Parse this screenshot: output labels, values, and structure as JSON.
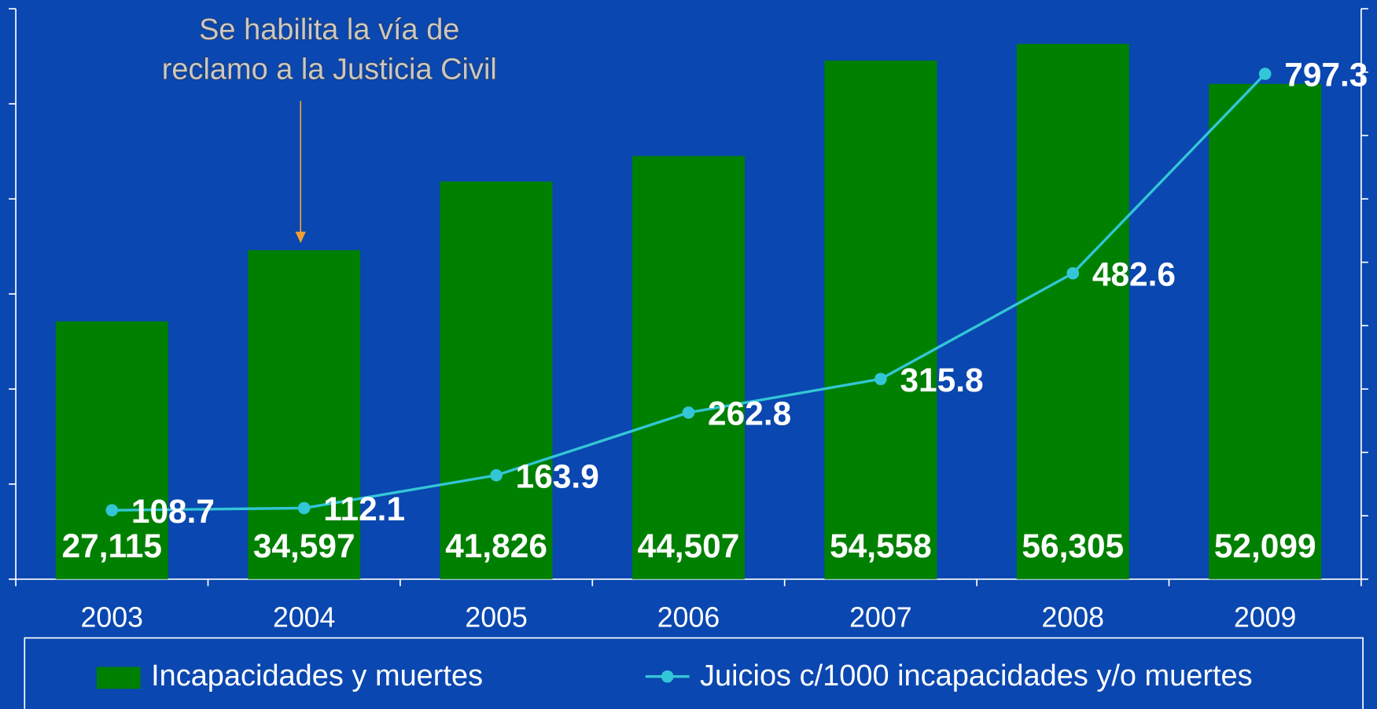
{
  "chart_data": {
    "type": "bar_line",
    "annotation": [
      "Se habilita la vía de",
      "reclamo a la Justicia Civil"
    ],
    "annotation_category": 1,
    "categories": [
      "2003",
      "2004",
      "2005",
      "2006",
      "2007",
      "2008",
      "2009"
    ],
    "series": [
      {
        "name": "Incapacidades y muertes",
        "type": "bar",
        "color": "#008000",
        "values": [
          27115,
          34597,
          41826,
          44507,
          54558,
          56305,
          52099
        ],
        "value_labels": [
          "27,115",
          "34,597",
          "41,826",
          "44,507",
          "54,558",
          "56,305",
          "52,099"
        ]
      },
      {
        "name": "Juicios c/1000 incapacidades y/o muertes",
        "type": "line",
        "axis": "y2",
        "color": "#33c6d6",
        "values": [
          108.7,
          112.1,
          163.9,
          262.8,
          315.8,
          482.6,
          797.3
        ]
      }
    ],
    "ylim": [
      0,
      60000
    ],
    "yticks": [
      0,
      10000,
      20000,
      30000,
      40000,
      50000,
      60000
    ],
    "y2lim": [
      0,
      900
    ],
    "y2ticks": [
      0,
      100,
      200,
      300,
      400,
      500,
      600,
      700,
      800,
      900
    ],
    "legend": "bottom"
  }
}
